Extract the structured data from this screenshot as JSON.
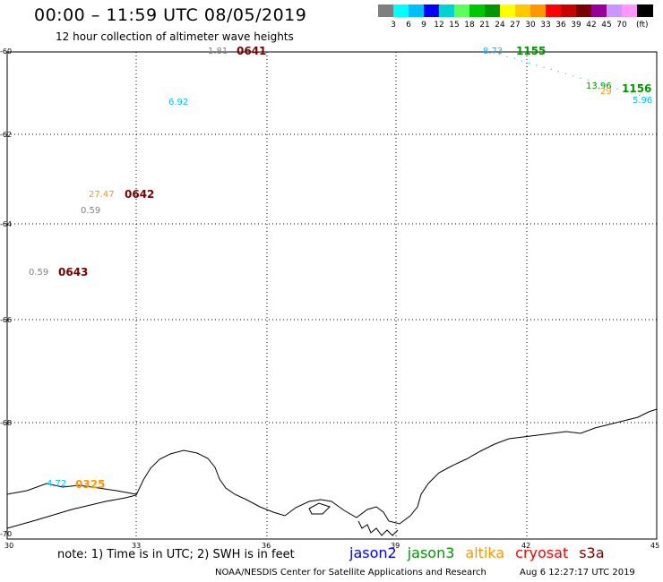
{
  "header": {
    "title": "00:00 – 11:59 UTC 08/05/2019",
    "subtitle": "12 hour collection of altimeter wave heights"
  },
  "legend": {
    "unit": "(ft)",
    "bins": [
      {
        "label": "",
        "color": "#7f7f7f"
      },
      {
        "label": "3",
        "color": "#00ffff"
      },
      {
        "label": "6",
        "color": "#00bfff"
      },
      {
        "label": "9",
        "color": "#0000ff"
      },
      {
        "label": "12",
        "color": "#00d2d2"
      },
      {
        "label": "15",
        "color": "#5aff5a"
      },
      {
        "label": "18",
        "color": "#00c800"
      },
      {
        "label": "21",
        "color": "#009600"
      },
      {
        "label": "24",
        "color": "#ffff00"
      },
      {
        "label": "27",
        "color": "#ffc800"
      },
      {
        "label": "30",
        "color": "#ff9600"
      },
      {
        "label": "33",
        "color": "#ff0000"
      },
      {
        "label": "36",
        "color": "#c80000"
      },
      {
        "label": "39",
        "color": "#780000"
      },
      {
        "label": "42",
        "color": "#960096"
      },
      {
        "label": "45",
        "color": "#c896ff"
      },
      {
        "label": "70",
        "color": "#ff96ff"
      },
      {
        "label": "",
        "color": "#000000"
      }
    ]
  },
  "axes": {
    "x_ticks": [
      "30",
      "33",
      "36",
      "39",
      "42",
      "45"
    ],
    "y_ticks": [
      "-60",
      "-62",
      "-64",
      "-66",
      "-68",
      "-70"
    ]
  },
  "observations": [
    {
      "text": "1.81",
      "color": "#7f7f7f"
    },
    {
      "text": "0641",
      "color": "#780000"
    },
    {
      "text": "6.92",
      "color": "#00bfff"
    },
    {
      "text": "27.47",
      "color": "#ff9600"
    },
    {
      "text": "0642",
      "color": "#780000"
    },
    {
      "text": "0.59",
      "color": "#7f7f7f"
    },
    {
      "text": "0.59",
      "color": "#7f7f7f"
    },
    {
      "text": "0643",
      "color": "#780000"
    },
    {
      "text": "4.72",
      "color": "#00bfff"
    },
    {
      "text": "0325",
      "color": "#ff9600"
    },
    {
      "text": "8.73",
      "color": "#00bfff"
    },
    {
      "text": "1155",
      "color": "#009600"
    },
    {
      "text": "1156",
      "color": "#009600"
    },
    {
      "text": "13.96",
      "color": "#009600"
    },
    {
      "text": "5.96",
      "color": "#00bfff"
    },
    {
      "text": "29",
      "color": "#ff9600"
    }
  ],
  "footer": {
    "note": "note: 1) Time is in UTC; 2) SWH is in feet",
    "satellites": [
      {
        "name": "jason2",
        "color": "#0000ff"
      },
      {
        "name": "jason3",
        "color": "#009600"
      },
      {
        "name": "altika",
        "color": "#ff9600"
      },
      {
        "name": "cryosat",
        "color": "#ff0000"
      },
      {
        "name": "s3a",
        "color": "#780000"
      }
    ],
    "credit": "NOAA/NESDIS Center for Satellite Applications and Research",
    "timestamp": "Aug  6 12:27:17 UTC 2019"
  }
}
